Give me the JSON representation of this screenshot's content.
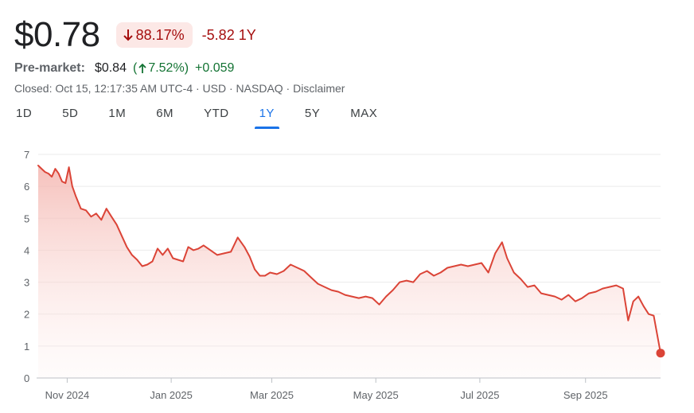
{
  "quote": {
    "price": "$0.78",
    "change_pct": "88.17%",
    "change_abs": "-5.82 1Y",
    "premarket_label": "Pre-market:",
    "premarket_price": "$0.84",
    "premarket_open_paren": "(",
    "premarket_pct": "7.52%",
    "premarket_close_paren": ")",
    "premarket_abs": "+0.059",
    "closed_info": "Closed: Oct 15, 12:17:35 AM UTC-4 · USD · NASDAQ · ",
    "disclaimer": "Disclaimer"
  },
  "colors": {
    "negative": "#a50e0e",
    "positive": "#137333",
    "line": "#db4437",
    "accent": "#1a73e8"
  },
  "icons": {
    "down": "arrow-down-icon",
    "up": "arrow-up-icon"
  },
  "tabs": [
    {
      "label": "1D",
      "active": false
    },
    {
      "label": "5D",
      "active": false
    },
    {
      "label": "1M",
      "active": false
    },
    {
      "label": "6M",
      "active": false
    },
    {
      "label": "YTD",
      "active": false
    },
    {
      "label": "1Y",
      "active": true
    },
    {
      "label": "5Y",
      "active": false
    },
    {
      "label": "MAX",
      "active": false
    }
  ],
  "chart_data": {
    "type": "area",
    "title": "",
    "xlabel": "",
    "ylabel": "",
    "ylim": [
      0,
      7
    ],
    "yticks": [
      0,
      1,
      2,
      3,
      4,
      5,
      6,
      7
    ],
    "xlim": [
      "2024-10-15",
      "2025-10-15"
    ],
    "xticks": [
      {
        "label": "Nov 2024",
        "date": "2024-11-01"
      },
      {
        "label": "Jan 2025",
        "date": "2025-01-01"
      },
      {
        "label": "Mar 2025",
        "date": "2025-03-01"
      },
      {
        "label": "May 2025",
        "date": "2025-05-01"
      },
      {
        "label": "Jul 2025",
        "date": "2025-07-01"
      },
      {
        "label": "Sep 2025",
        "date": "2025-09-01"
      }
    ],
    "grid": true,
    "series": [
      {
        "x": [
          "2024-10-15",
          "2024-10-17",
          "2024-10-19",
          "2024-10-21",
          "2024-10-23",
          "2024-10-25",
          "2024-10-27",
          "2024-10-29",
          "2024-10-31",
          "2024-11-02",
          "2024-11-04",
          "2024-11-06",
          "2024-11-09",
          "2024-11-12",
          "2024-11-15",
          "2024-11-18",
          "2024-11-21",
          "2024-11-24",
          "2024-11-27",
          "2024-11-30",
          "2024-12-03",
          "2024-12-06",
          "2024-12-09",
          "2024-12-12",
          "2024-12-15",
          "2024-12-18",
          "2024-12-21",
          "2024-12-24",
          "2024-12-27",
          "2024-12-30",
          "2025-01-02",
          "2025-01-05",
          "2025-01-08",
          "2025-01-11",
          "2025-01-14",
          "2025-01-17",
          "2025-01-20",
          "2025-01-24",
          "2025-01-28",
          "2025-02-01",
          "2025-02-05",
          "2025-02-09",
          "2025-02-13",
          "2025-02-16",
          "2025-02-19",
          "2025-02-22",
          "2025-02-25",
          "2025-02-28",
          "2025-03-04",
          "2025-03-08",
          "2025-03-12",
          "2025-03-16",
          "2025-03-20",
          "2025-03-24",
          "2025-03-28",
          "2025-04-01",
          "2025-04-05",
          "2025-04-09",
          "2025-04-13",
          "2025-04-17",
          "2025-04-21",
          "2025-04-25",
          "2025-04-29",
          "2025-05-03",
          "2025-05-07",
          "2025-05-11",
          "2025-05-15",
          "2025-05-19",
          "2025-05-23",
          "2025-05-27",
          "2025-05-31",
          "2025-06-04",
          "2025-06-08",
          "2025-06-12",
          "2025-06-16",
          "2025-06-20",
          "2025-06-24",
          "2025-06-28",
          "2025-07-02",
          "2025-07-06",
          "2025-07-10",
          "2025-07-14",
          "2025-07-17",
          "2025-07-21",
          "2025-07-25",
          "2025-07-29",
          "2025-08-02",
          "2025-08-06",
          "2025-08-10",
          "2025-08-14",
          "2025-08-18",
          "2025-08-22",
          "2025-08-26",
          "2025-08-30",
          "2025-09-03",
          "2025-09-07",
          "2025-09-11",
          "2025-09-15",
          "2025-09-19",
          "2025-09-23",
          "2025-09-26",
          "2025-09-29",
          "2025-10-02",
          "2025-10-05",
          "2025-10-08",
          "2025-10-11",
          "2025-10-15"
        ],
        "values": [
          6.65,
          6.55,
          6.45,
          6.4,
          6.3,
          6.55,
          6.4,
          6.15,
          6.1,
          6.6,
          6.0,
          5.7,
          5.3,
          5.25,
          5.05,
          5.15,
          4.95,
          5.3,
          5.05,
          4.8,
          4.45,
          4.1,
          3.85,
          3.7,
          3.5,
          3.55,
          3.65,
          4.05,
          3.85,
          4.05,
          3.75,
          3.7,
          3.65,
          4.1,
          4.0,
          4.05,
          4.15,
          4.0,
          3.85,
          3.9,
          3.95,
          4.4,
          4.1,
          3.8,
          3.4,
          3.2,
          3.2,
          3.3,
          3.25,
          3.35,
          3.55,
          3.45,
          3.35,
          3.15,
          2.95,
          2.85,
          2.75,
          2.7,
          2.6,
          2.55,
          2.5,
          2.55,
          2.5,
          2.3,
          2.55,
          2.75,
          3.0,
          3.05,
          3.0,
          3.25,
          3.35,
          3.2,
          3.3,
          3.45,
          3.5,
          3.55,
          3.5,
          3.55,
          3.6,
          3.3,
          3.9,
          4.25,
          3.75,
          3.3,
          3.1,
          2.85,
          2.9,
          2.65,
          2.6,
          2.55,
          2.45,
          2.6,
          2.4,
          2.5,
          2.65,
          2.7,
          2.8,
          2.85,
          2.9,
          2.8,
          1.8,
          2.4,
          2.55,
          2.25,
          2.0,
          1.95,
          0.78
        ]
      }
    ],
    "last_value": 0.78
  }
}
